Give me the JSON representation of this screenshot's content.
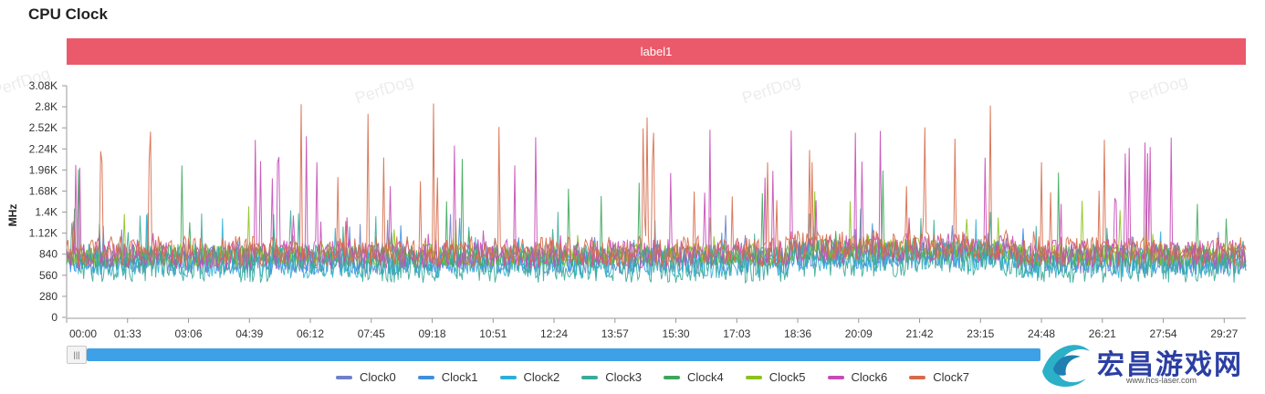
{
  "title": "CPU Clock",
  "banner": {
    "label": "label1",
    "color": "#eb5a6a"
  },
  "watermark_text": "PerfDog",
  "logo": {
    "text": "宏昌游戏网",
    "subtext": "www.hcs-laser.com"
  },
  "scrollbar": {
    "handle_glyph": "|||",
    "visible_window_fraction": [
      0.0,
      0.83
    ]
  },
  "chart_data": {
    "type": "line",
    "title": "CPU Clock",
    "xlabel": "",
    "ylabel": "MHz",
    "ylim": [
      0,
      3080
    ],
    "yticks": [
      0,
      280,
      560,
      840,
      1120,
      1400,
      1680,
      1960,
      2240,
      2520,
      2800,
      3080
    ],
    "ytick_labels": [
      "0",
      "280",
      "560",
      "840",
      "1.12K",
      "1.4K",
      "1.68K",
      "1.96K",
      "2.24K",
      "2.52K",
      "2.8K",
      "3.08K"
    ],
    "xtick_labels": [
      "00:00",
      "01:33",
      "03:06",
      "04:39",
      "06:12",
      "07:45",
      "09:18",
      "10:51",
      "12:24",
      "13:57",
      "15:30",
      "17:03",
      "18:36",
      "20:09",
      "21:42",
      "23:15",
      "24:48",
      "26:21",
      "27:54",
      "29:27"
    ],
    "x_range_seconds": [
      0,
      1800
    ],
    "sample_interval_seconds": 2,
    "series": [
      {
        "name": "Clock0",
        "color": "#6f7fc9",
        "base": 760,
        "spread": 180,
        "spike_rate": 0.02,
        "spike_max": 1400
      },
      {
        "name": "Clock1",
        "color": "#3f8fe0",
        "base": 740,
        "spread": 180,
        "spike_rate": 0.02,
        "spike_max": 1400
      },
      {
        "name": "Clock2",
        "color": "#2bb0d8",
        "base": 720,
        "spread": 200,
        "spike_rate": 0.02,
        "spike_max": 1400
      },
      {
        "name": "Clock3",
        "color": "#3aaa99",
        "base": 720,
        "spread": 260,
        "spike_rate": 0.04,
        "spike_max": 1450
      },
      {
        "name": "Clock4",
        "color": "#3ea65a",
        "base": 820,
        "spread": 160,
        "spike_rate": 0.02,
        "spike_max": 2200
      },
      {
        "name": "Clock5",
        "color": "#8cc21e",
        "base": 830,
        "spread": 150,
        "spike_rate": 0.02,
        "spike_max": 1700
      },
      {
        "name": "Clock6",
        "color": "#c44bb6",
        "base": 840,
        "spread": 200,
        "spike_rate": 0.05,
        "spike_max": 2500
      },
      {
        "name": "Clock7",
        "color": "#d66a4a",
        "base": 880,
        "spread": 200,
        "spike_rate": 0.05,
        "spike_max": 2850
      }
    ]
  }
}
